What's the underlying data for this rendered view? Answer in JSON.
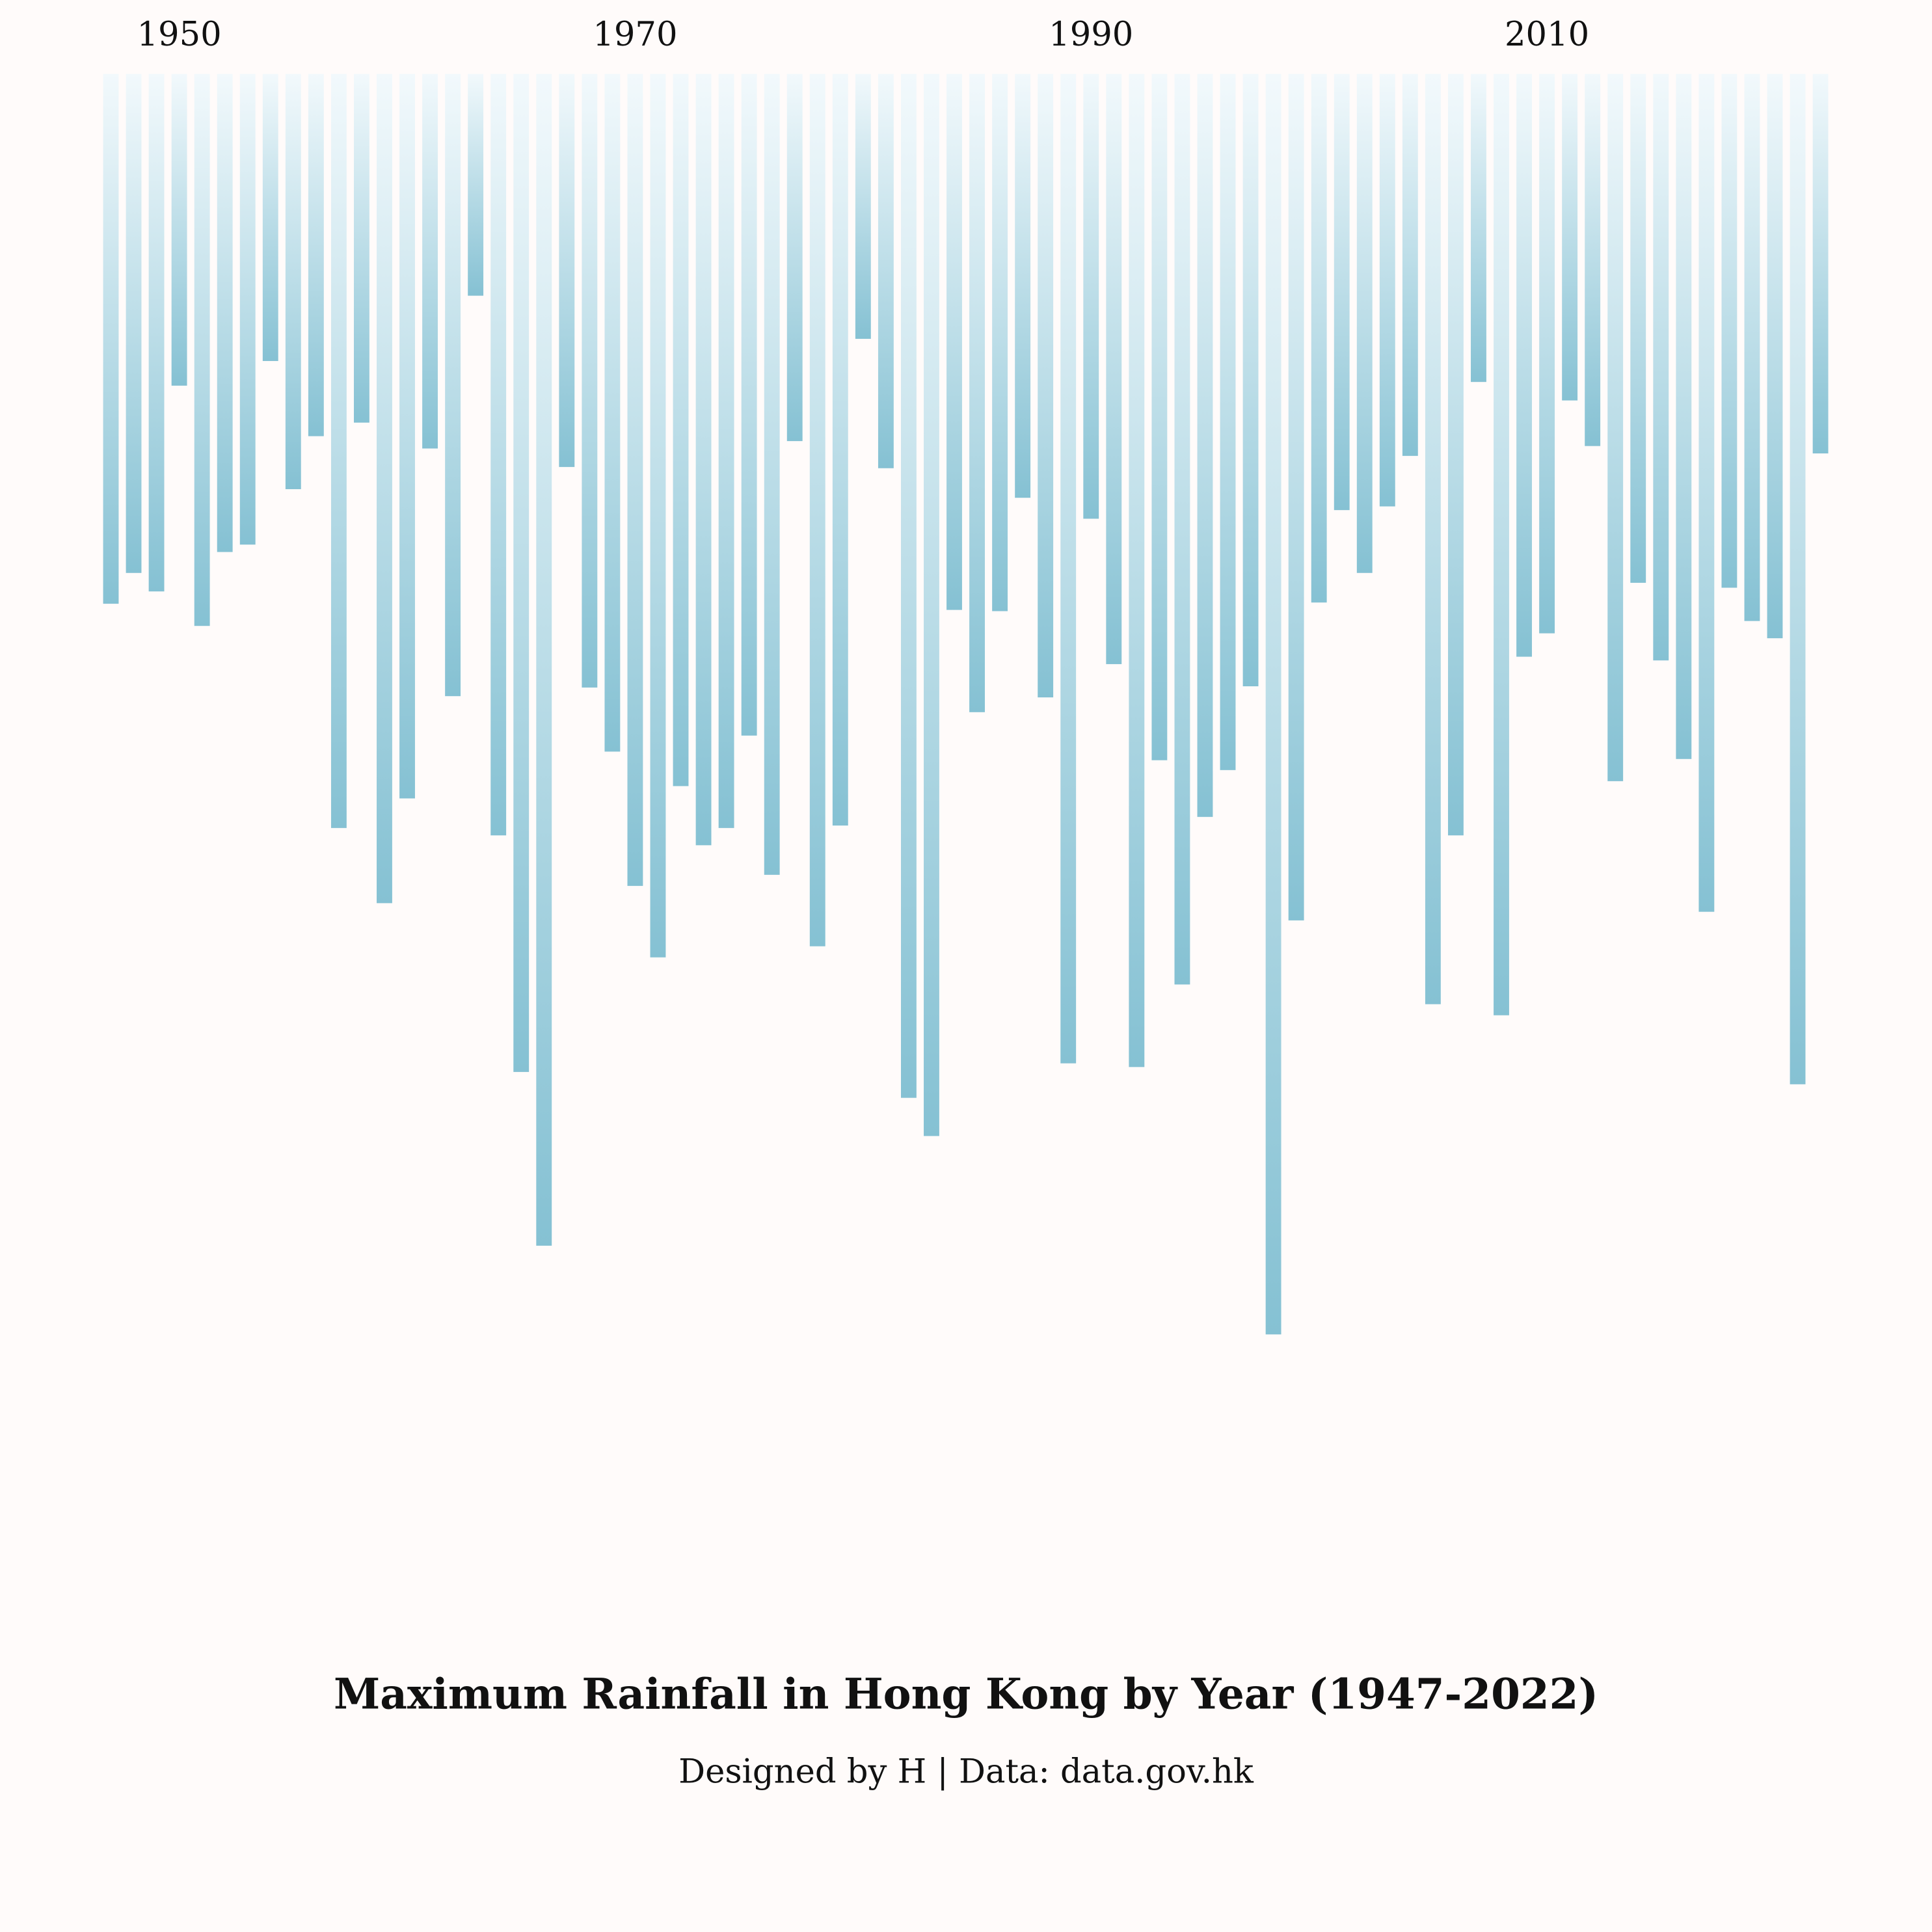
{
  "chart_data": {
    "type": "bar",
    "title": "Maximum Rainfall in Hong Kong by Year (1947-2022)",
    "subtitle": "Designed by H | Data: data.gov.hk",
    "x": [
      1947,
      1948,
      1949,
      1950,
      1951,
      1952,
      1953,
      1954,
      1955,
      1956,
      1957,
      1958,
      1959,
      1960,
      1961,
      1962,
      1963,
      1964,
      1965,
      1966,
      1967,
      1968,
      1969,
      1970,
      1971,
      1972,
      1973,
      1974,
      1975,
      1976,
      1977,
      1978,
      1979,
      1980,
      1981,
      1982,
      1983,
      1984,
      1985,
      1986,
      1987,
      1988,
      1989,
      1990,
      1991,
      1992,
      1993,
      1994,
      1995,
      1996,
      1997,
      1998,
      1999,
      2000,
      2001,
      2002,
      2003,
      2004,
      2005,
      2006,
      2007,
      2008,
      2009,
      2010,
      2011,
      2012,
      2013,
      2014,
      2015,
      2016,
      2017,
      2018,
      2019,
      2020,
      2021,
      2022
    ],
    "values": [
      430,
      405,
      420,
      253,
      448,
      388,
      382,
      233,
      337,
      294,
      612,
      283,
      673,
      588,
      304,
      505,
      180,
      618,
      810,
      951,
      319,
      498,
      550,
      659,
      717,
      578,
      626,
      612,
      537,
      650,
      298,
      708,
      610,
      215,
      320,
      831,
      862,
      435,
      518,
      436,
      344,
      506,
      803,
      361,
      479,
      806,
      557,
      739,
      603,
      565,
      497,
      1023,
      687,
      429,
      354,
      405,
      351,
      310,
      755,
      618,
      250,
      764,
      473,
      454,
      265,
      302,
      574,
      413,
      476,
      556,
      680,
      417,
      444,
      458,
      820,
      308
    ],
    "xlim": [
      1944,
      2025
    ],
    "xticks": [
      1950,
      1970,
      1990,
      2010
    ],
    "ylim": [
      0,
      1240
    ],
    "color": "#85c1d3",
    "fade_color": "#f2f9fc"
  }
}
